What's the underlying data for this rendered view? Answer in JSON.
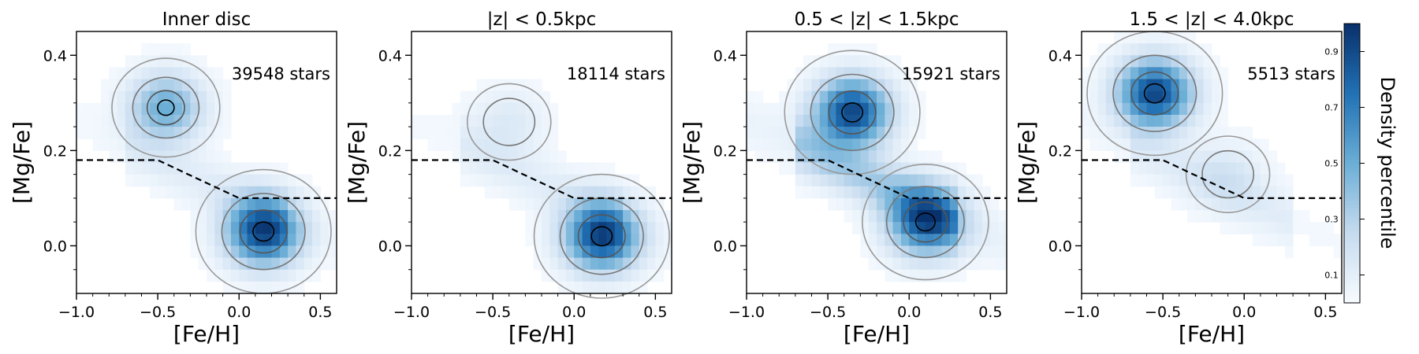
{
  "chart_data": [
    {
      "type": "heatmap",
      "title": "Inner disc",
      "xlabel": "[Fe/H]",
      "ylabel": "[Mg/Fe]",
      "xlim": [
        -1.0,
        0.6
      ],
      "ylim": [
        -0.1,
        0.45
      ],
      "xticks": [
        "−1.0",
        "−0.5",
        "0.0",
        "0.5"
      ],
      "yticks": [
        "0.0",
        "0.2",
        "0.4"
      ],
      "annotation": "39548 stars",
      "dashed_line": [
        [
          -1.0,
          0.18
        ],
        [
          -0.5,
          0.18
        ],
        [
          0.0,
          0.1
        ],
        [
          0.6,
          0.1
        ]
      ],
      "peaks": [
        {
          "x": 0.15,
          "y": 0.03,
          "value": 1.0
        },
        {
          "x": -0.45,
          "y": 0.29,
          "value": 0.55
        }
      ]
    },
    {
      "type": "heatmap",
      "title": "|z| < 0.5kpc",
      "xlabel": "[Fe/H]",
      "ylabel": "[Mg/Fe]",
      "xlim": [
        -1.0,
        0.6
      ],
      "ylim": [
        -0.1,
        0.45
      ],
      "xticks": [
        "−1.0",
        "−0.5",
        "0.0",
        "0.5"
      ],
      "yticks": [
        "0.0",
        "0.2",
        "0.4"
      ],
      "annotation": "18114 stars",
      "dashed_line": [
        [
          -1.0,
          0.18
        ],
        [
          -0.5,
          0.18
        ],
        [
          0.0,
          0.1
        ],
        [
          0.6,
          0.1
        ]
      ],
      "peaks": [
        {
          "x": 0.17,
          "y": 0.02,
          "value": 1.0
        },
        {
          "x": -0.4,
          "y": 0.26,
          "value": 0.15
        }
      ]
    },
    {
      "type": "heatmap",
      "title": "0.5 < |z| < 1.5kpc",
      "xlabel": "[Fe/H]",
      "ylabel": "[Mg/Fe]",
      "xlim": [
        -1.0,
        0.6
      ],
      "ylim": [
        -0.1,
        0.45
      ],
      "xticks": [
        "−1.0",
        "−0.5",
        "0.0",
        "0.5"
      ],
      "yticks": [
        "0.0",
        "0.2",
        "0.4"
      ],
      "annotation": "15921 stars",
      "dashed_line": [
        [
          -1.0,
          0.18
        ],
        [
          -0.5,
          0.18
        ],
        [
          0.0,
          0.1
        ],
        [
          0.6,
          0.1
        ]
      ],
      "peaks": [
        {
          "x": -0.35,
          "y": 0.28,
          "value": 1.0
        },
        {
          "x": 0.1,
          "y": 0.05,
          "value": 0.85
        }
      ]
    },
    {
      "type": "heatmap",
      "title": "1.5 < |z| < 4.0kpc",
      "xlabel": "[Fe/H]",
      "ylabel": "[Mg/Fe]",
      "xlim": [
        -1.0,
        0.6
      ],
      "ylim": [
        -0.1,
        0.45
      ],
      "xticks": [
        "−1.0",
        "−0.5",
        "0.0",
        "0.5"
      ],
      "yticks": [
        "0.0",
        "0.2",
        "0.4"
      ],
      "annotation": "5513 stars",
      "dashed_line": [
        [
          -1.0,
          0.18
        ],
        [
          -0.5,
          0.18
        ],
        [
          0.0,
          0.1
        ],
        [
          0.6,
          0.1
        ]
      ],
      "peaks": [
        {
          "x": -0.55,
          "y": 0.32,
          "value": 1.0
        },
        {
          "x": -0.1,
          "y": 0.15,
          "value": 0.15
        }
      ]
    }
  ],
  "colorbar": {
    "label": "Density percentile",
    "ticks": [
      "0.9",
      "0.7",
      "0.5",
      "0.3",
      "0.1"
    ],
    "tick_values": [
      0.9,
      0.7,
      0.5,
      0.3,
      0.1
    ],
    "range": [
      0.0,
      1.0
    ],
    "color_low": "#f7fbff",
    "color_high": "#08306b",
    "colormap": "Blues"
  }
}
